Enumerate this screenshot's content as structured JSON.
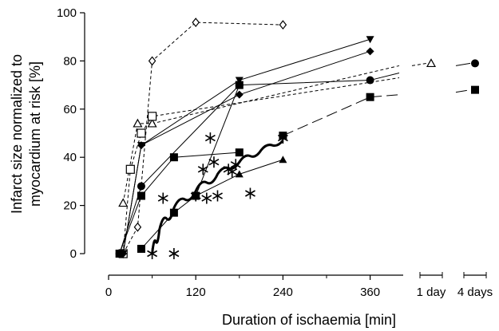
{
  "chart_data": {
    "type": "scatter",
    "title": "",
    "xlabel": "Duration of ischaemia [min]",
    "ylabel_line1": "Infarct size normalized to",
    "ylabel_line2": "myocardium at risk [%]",
    "xlim": [
      0,
      400
    ],
    "ylim": [
      0,
      100
    ],
    "x_ticks": [
      0,
      120,
      240,
      360
    ],
    "y_ticks": [
      0,
      20,
      40,
      60,
      80,
      100
    ],
    "x_tick_labels": [
      "0",
      "120",
      "240",
      "360"
    ],
    "y_tick_labels": [
      "0",
      "20",
      "40",
      "60",
      "80",
      "100"
    ],
    "break_ticks": [
      "1 day",
      "4 days"
    ],
    "series": [
      {
        "marker": "diamond-open",
        "line": "dashed",
        "points": [
          [
            20,
            0
          ],
          [
            40,
            11
          ],
          [
            60,
            80
          ],
          [
            120,
            96
          ],
          [
            240,
            95
          ]
        ]
      },
      {
        "marker": "triangle-open",
        "line": "dashed",
        "points": [
          [
            20,
            21
          ],
          [
            40,
            54
          ],
          [
            60,
            54
          ],
          [
            400,
            78
          ]
        ],
        "late_point": {
          "at": "1 day",
          "y": 79
        }
      },
      {
        "marker": "square-open",
        "line": "dashed",
        "points": [
          [
            20,
            0
          ],
          [
            30,
            35
          ],
          [
            45,
            50
          ],
          [
            60,
            57
          ],
          [
            400,
            73
          ]
        ]
      },
      {
        "marker": "triangle-down-filled",
        "line": "solid",
        "points": [
          [
            20,
            0
          ],
          [
            45,
            45
          ],
          [
            180,
            72
          ],
          [
            360,
            89
          ]
        ]
      },
      {
        "marker": "diamond-filled",
        "line": "solid",
        "points": [
          [
            20,
            0
          ],
          [
            45,
            45
          ],
          [
            180,
            66
          ],
          [
            360,
            84
          ]
        ]
      },
      {
        "marker": "circle-filled",
        "line": "solid",
        "points": [
          [
            15,
            0
          ],
          [
            45,
            28
          ],
          [
            180,
            70
          ],
          [
            360,
            72
          ],
          [
            400,
            75
          ]
        ],
        "late_point": {
          "at": "4 days",
          "y": 79
        }
      },
      {
        "marker": "square-filled",
        "line": "solid",
        "points": [
          [
            15,
            0
          ],
          [
            45,
            24
          ],
          [
            90,
            40
          ],
          [
            180,
            42
          ]
        ]
      },
      {
        "marker": "square-filled",
        "line": "solid",
        "points": [
          [
            45,
            2
          ],
          [
            90,
            17
          ],
          [
            120,
            24
          ],
          [
            180,
            70
          ]
        ]
      },
      {
        "marker": "square-filled",
        "line": "long-dash",
        "points": [
          [
            240,
            49
          ],
          [
            360,
            65
          ],
          [
            400,
            66
          ]
        ],
        "late_point": {
          "at": "4 days",
          "y": 68
        }
      },
      {
        "marker": "triangle-up-filled",
        "line": "solid",
        "points": [
          [
            120,
            24
          ],
          [
            180,
            33
          ],
          [
            240,
            39
          ]
        ]
      },
      {
        "marker": "asterisk",
        "line": "none",
        "points": [
          [
            60,
            0
          ],
          [
            90,
            0
          ],
          [
            75,
            23
          ],
          [
            120,
            24
          ],
          [
            130,
            35
          ],
          [
            135,
            23
          ],
          [
            140,
            48
          ],
          [
            145,
            38
          ],
          [
            150,
            24
          ],
          [
            165,
            35
          ],
          [
            170,
            34
          ],
          [
            175,
            37
          ],
          [
            195,
            25
          ],
          [
            240,
            48
          ]
        ]
      }
    ],
    "fit_curve": {
      "style": "thick-solid",
      "points": [
        [
          60,
          0
        ],
        [
          70,
          10
        ],
        [
          90,
          19
        ],
        [
          120,
          26
        ],
        [
          150,
          33
        ],
        [
          180,
          38
        ],
        [
          210,
          43
        ],
        [
          240,
          47
        ]
      ]
    }
  }
}
